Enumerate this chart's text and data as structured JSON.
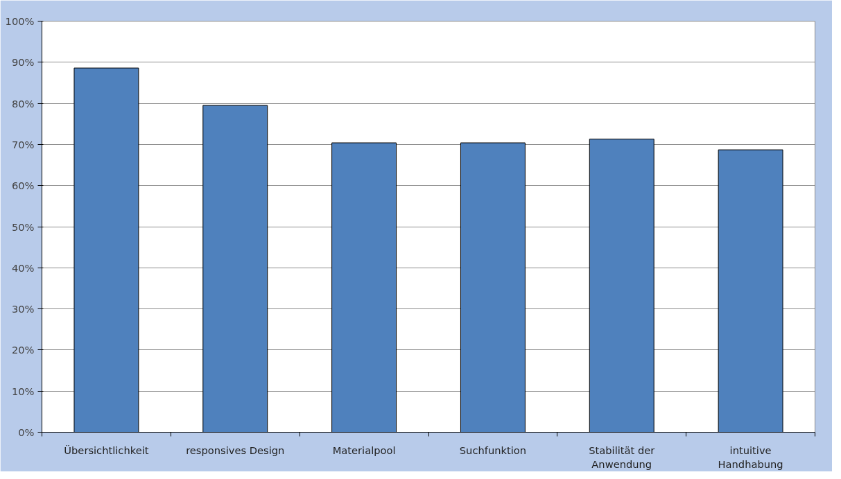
{
  "chart_data": {
    "type": "bar",
    "categories": [
      "Übersichtlichkeit",
      "responsives Design",
      "Materialpool",
      "Suchfunktion",
      "Stabilität der Anwendung",
      "intuitive Handhabung"
    ],
    "values": [
      88.6,
      79.5,
      70.4,
      70.4,
      71.3,
      68.7
    ],
    "color": "#4f81bd",
    "ylim": [
      0,
      100
    ],
    "yticks": [
      {
        "value": 0,
        "label": "0%"
      },
      {
        "value": 10,
        "label": "10%"
      },
      {
        "value": 20,
        "label": "20%"
      },
      {
        "value": 30,
        "label": "30%"
      },
      {
        "value": 40,
        "label": "40%"
      },
      {
        "value": 50,
        "label": "50%"
      },
      {
        "value": 60,
        "label": "60%"
      },
      {
        "value": 70,
        "label": "70%"
      },
      {
        "value": 80,
        "label": "80%"
      },
      {
        "value": 90,
        "label": "90%"
      },
      {
        "value": 100,
        "label": "100%"
      }
    ],
    "grid": "y"
  }
}
